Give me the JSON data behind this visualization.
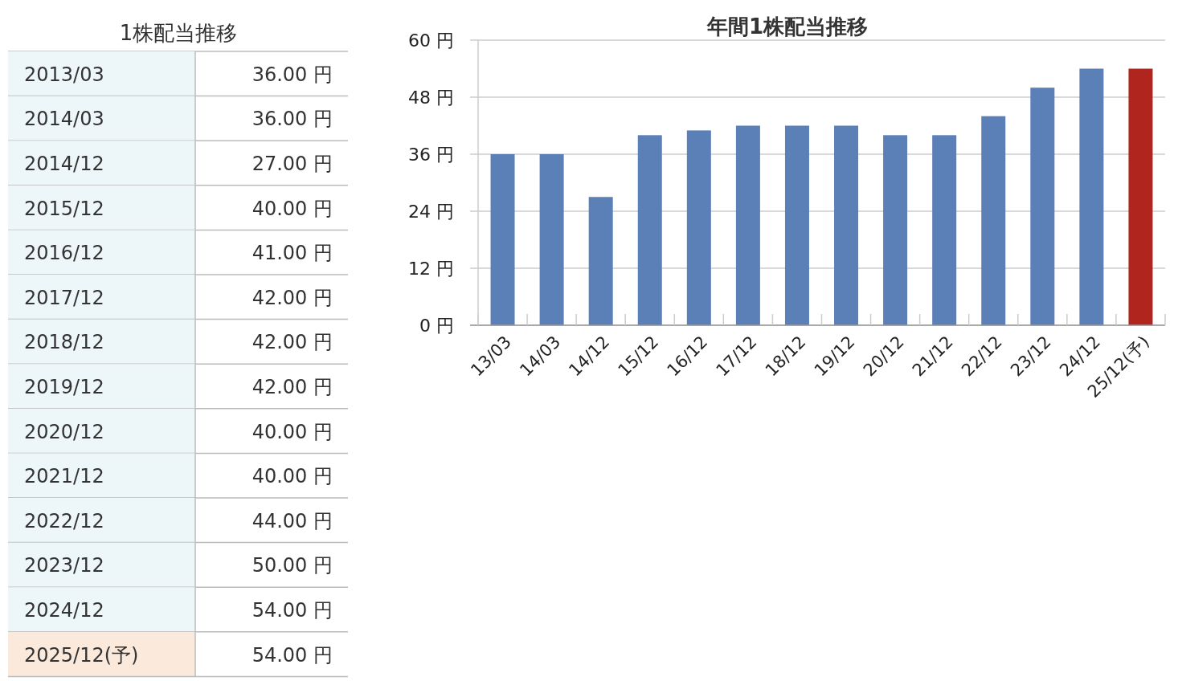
{
  "chart_data": [
    {
      "type": "other",
      "title": "1株配当推移",
      "categories": [
        "2013/03",
        "2014/03",
        "2014/12",
        "2015/12",
        "2016/12",
        "2017/12",
        "2018/12",
        "2019/12",
        "2020/12",
        "2021/12",
        "2022/12",
        "2023/12",
        "2024/12",
        "2025/12(予)"
      ],
      "values": [
        36,
        36,
        27,
        40,
        41,
        42,
        42,
        42,
        40,
        40,
        44,
        50,
        54,
        54
      ],
      "value_labels": [
        "36.00 円",
        "36.00 円",
        "27.00 円",
        "40.00 円",
        "41.00 円",
        "42.00 円",
        "42.00 円",
        "42.00 円",
        "40.00 円",
        "40.00 円",
        "44.00 円",
        "50.00 円",
        "54.00 円",
        "54.00 円"
      ],
      "colors": [
        "#edf6f8",
        "#edf6f8",
        "#edf6f8",
        "#edf6f8",
        "#edf6f8",
        "#edf6f8",
        "#edf6f8",
        "#edf6f8",
        "#edf6f8",
        "#edf6f8",
        "#edf6f8",
        "#edf6f8",
        "#edf6f8",
        "#fbeadc"
      ]
    },
    {
      "type": "bar",
      "title": "年間1株配当推移",
      "categories": [
        "13/03",
        "14/03",
        "14/12",
        "15/12",
        "16/12",
        "17/12",
        "18/12",
        "19/12",
        "20/12",
        "21/12",
        "22/12",
        "23/12",
        "24/12",
        "25/12(予)"
      ],
      "values": [
        36,
        36,
        27,
        40,
        41,
        42,
        42,
        42,
        40,
        40,
        44,
        50,
        54,
        54
      ],
      "colors": [
        "#5b7fb7",
        "#5b7fb7",
        "#5b7fb7",
        "#5b7fb7",
        "#5b7fb7",
        "#5b7fb7",
        "#5b7fb7",
        "#5b7fb7",
        "#5b7fb7",
        "#5b7fb7",
        "#5b7fb7",
        "#5b7fb7",
        "#5b7fb7",
        "#b0261f"
      ],
      "ylim": [
        0,
        60
      ],
      "yticks": [
        {
          "value": 0,
          "label": "0 円"
        },
        {
          "value": 12,
          "label": "12 円"
        },
        {
          "value": 24,
          "label": "24 円"
        },
        {
          "value": 36,
          "label": "36 円"
        },
        {
          "value": 48,
          "label": "48 円"
        },
        {
          "value": 60,
          "label": "60 円"
        }
      ],
      "grid": "y"
    }
  ]
}
